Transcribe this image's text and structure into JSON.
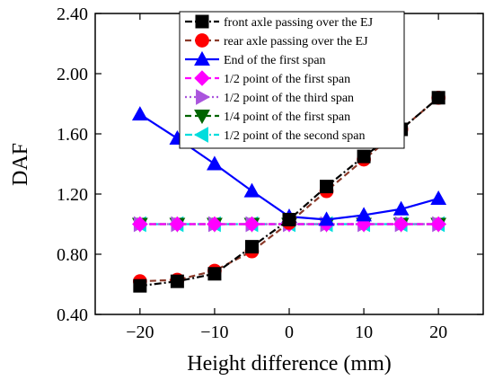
{
  "chart_data": {
    "type": "line",
    "title": "",
    "xlabel": "Height difference (mm)",
    "ylabel": "DAF",
    "x": [
      -20,
      -15,
      -10,
      -5,
      0,
      5,
      10,
      15,
      20
    ],
    "xlim": [
      -26,
      26
    ],
    "ylim": [
      0.4,
      2.4
    ],
    "xticks": [
      -20,
      -10,
      0,
      10,
      20
    ],
    "yticks": [
      0.4,
      0.8,
      1.2,
      1.6,
      2.0,
      2.4
    ],
    "xtick_labels": [
      "−20",
      "−10",
      "0",
      "10",
      "20"
    ],
    "ytick_labels": [
      "0.40",
      "0.80",
      "1.20",
      "1.60",
      "2.00",
      "2.40"
    ],
    "grid": false,
    "legend_position": "top-right",
    "series": [
      {
        "name": "front axle passing over the EJ",
        "color": "#000000",
        "marker": "square",
        "line": "dashdot",
        "values": [
          0.59,
          0.62,
          0.67,
          0.85,
          1.03,
          1.25,
          1.45,
          1.63,
          1.84
        ]
      },
      {
        "name": "rear axle passing over the EJ",
        "color": "#ff0000",
        "line_color": "#8b3a2a",
        "marker": "circle",
        "line": "dash",
        "values": [
          0.62,
          0.63,
          0.69,
          0.82,
          1.01,
          1.22,
          1.43,
          1.63,
          1.84
        ]
      },
      {
        "name": "End of the first span",
        "color": "#0000ff",
        "marker": "triangle-up",
        "line": "solid",
        "values": [
          1.73,
          1.57,
          1.4,
          1.22,
          1.05,
          1.03,
          1.06,
          1.1,
          1.17
        ]
      },
      {
        "name": "1/2 point of the first span",
        "color": "#ff00ff",
        "marker": "diamond",
        "line": "dash",
        "values": [
          1.0,
          1.0,
          1.0,
          1.0,
          1.0,
          1.0,
          1.0,
          1.0,
          1.0
        ]
      },
      {
        "name": "1/2 point of the third span",
        "color": "#aa55dd",
        "marker": "triangle-right",
        "line": "dot",
        "values": [
          1.0,
          1.0,
          1.0,
          1.0,
          1.0,
          1.0,
          1.0,
          1.0,
          1.0
        ]
      },
      {
        "name": "1/4 point of the first span",
        "color": "#006400",
        "marker": "triangle-down",
        "line": "dash",
        "values": [
          1.0,
          1.0,
          1.0,
          1.0,
          1.0,
          1.0,
          1.0,
          1.0,
          1.0
        ]
      },
      {
        "name": "1/2 point of the second span",
        "color": "#00dddd",
        "marker": "triangle-left",
        "line": "dashdot",
        "values": [
          1.0,
          1.0,
          1.0,
          1.0,
          1.0,
          1.0,
          1.0,
          1.0,
          1.0
        ]
      }
    ]
  }
}
